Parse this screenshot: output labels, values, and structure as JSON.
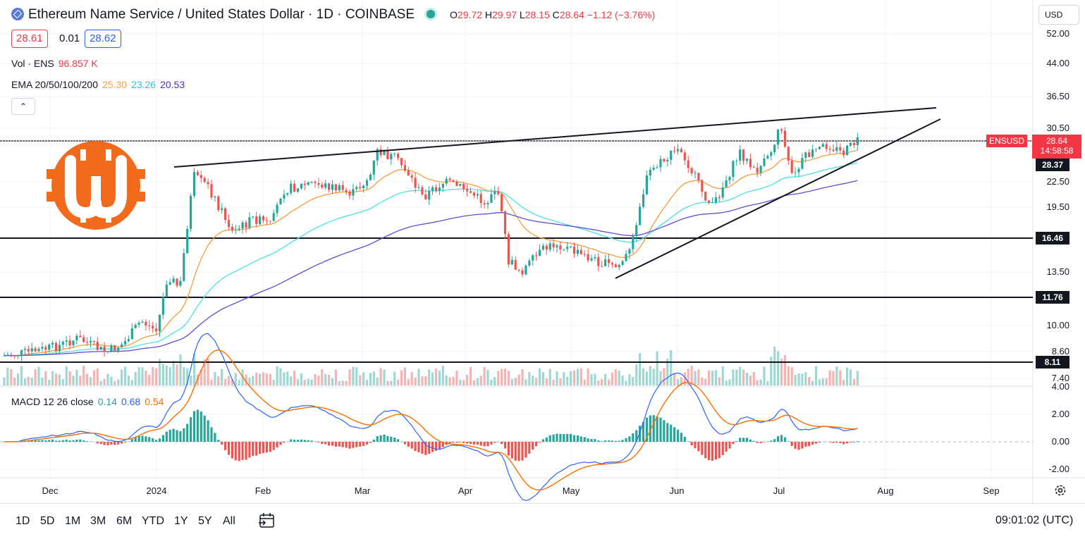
{
  "header": {
    "title": "Ethereum Name Service / United States Dollar · 1D · COINBASE",
    "ohlc": {
      "o_label": "O",
      "o": "29.72",
      "h_label": "H",
      "h": "29.97",
      "l_label": "L",
      "l": "28.15",
      "c_label": "C",
      "c": "28.64",
      "change": "−1.12 (−3.76%)"
    },
    "bid": "28.61",
    "spread": "0.01",
    "ask": "28.62"
  },
  "indicators": {
    "vol_label": "Vol · ENS",
    "vol_value": "96.857 K",
    "ema_label": "EMA 20/50/100/200",
    "ema_20": "25.30",
    "ema_50": "23.26",
    "ema_100": "20.53",
    "macd_label": "MACD 12 26 close",
    "macd_hist": "0.14",
    "macd_line": "0.68",
    "macd_signal": "0.54"
  },
  "currency_button": "USD",
  "price_axis": {
    "labels": [
      "52.00",
      "44.00",
      "36.50",
      "30.50",
      "22.50",
      "19.50",
      "13.50",
      "10.00",
      "8.60",
      "7.40"
    ],
    "symbol_tag": "ENSUSD",
    "last_price": "28.64",
    "countdown": "14:58:58",
    "level_tags": [
      "28.37",
      "16.46",
      "11.76",
      "8.11"
    ]
  },
  "macd_axis": {
    "labels": [
      "4.00",
      "2.00",
      "0.00",
      "-2.00"
    ]
  },
  "time_axis": {
    "labels": [
      "Dec",
      "2024",
      "Feb",
      "Mar",
      "Apr",
      "May",
      "Jun",
      "Jul",
      "Aug",
      "Sep"
    ]
  },
  "bottom_bar": {
    "ranges": [
      "1D",
      "5D",
      "1M",
      "3M",
      "6M",
      "YTD",
      "1Y",
      "5Y",
      "All"
    ],
    "clock": "09:01:02 (UTC)"
  },
  "colors": {
    "up": "#26a69a",
    "down": "#ef5350",
    "ema20": "#f59c3c",
    "ema50": "#4de0e0",
    "ema100": "#5c4fd6",
    "macd_line": "#2962ff",
    "macd_signal": "#ff6d00",
    "logo": "#f26a1b"
  },
  "icons": {
    "symbol": "ens-icon",
    "market_status": "market-open-dot",
    "compare": "compare-icon",
    "settings": "gear-icon",
    "logo": "bitcoin-logo"
  }
}
